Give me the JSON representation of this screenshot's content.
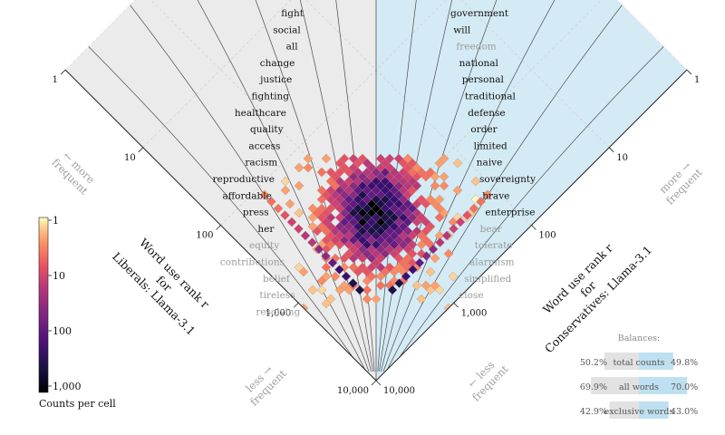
{
  "chart_data": {
    "type": "heatmap",
    "subtype": "allotaxonograph (rank-rank histogram)",
    "axes": {
      "left": {
        "label_lines": [
          "Word use rank r",
          "for",
          "Liberals: Llama-3.1"
        ],
        "ticks": [
          "1",
          "10",
          "100",
          "1,000",
          "10,000"
        ],
        "background": "#ebebeb"
      },
      "right": {
        "label_lines": [
          "Word use rank r",
          "for",
          "Conservatives: Llama-3.1"
        ],
        "ticks": [
          "1",
          "10",
          "100",
          "1,000",
          "10,000"
        ],
        "background": "#d4ebf5"
      },
      "scale": "log10",
      "range": [
        1,
        10000
      ],
      "grid": true
    },
    "direction_labels": {
      "left_more": [
        "← more",
        "frequent"
      ],
      "right_more": [
        "more →",
        "frequent"
      ],
      "left_less": [
        "less →",
        "frequent"
      ],
      "right_less": [
        "← less",
        "frequent"
      ]
    },
    "left_words": [
      {
        "text": "fight",
        "dark": true
      },
      {
        "text": "social",
        "dark": true
      },
      {
        "text": "all",
        "dark": true
      },
      {
        "text": "change",
        "dark": true
      },
      {
        "text": "justice",
        "dark": true
      },
      {
        "text": "fighting",
        "dark": true
      },
      {
        "text": "healthcare",
        "dark": true
      },
      {
        "text": "quality",
        "dark": true
      },
      {
        "text": "access",
        "dark": true
      },
      {
        "text": "racism",
        "dark": true
      },
      {
        "text": "reproductive",
        "dark": true
      },
      {
        "text": "affordable",
        "dark": true
      },
      {
        "text": "press",
        "dark": true
      },
      {
        "text": "her",
        "dark": true
      },
      {
        "text": "equity",
        "dark": false
      },
      {
        "text": "contributions",
        "dark": false
      },
      {
        "text": "belief",
        "dark": false
      },
      {
        "text": "tireless",
        "dark": false
      },
      {
        "text": "resolving",
        "dark": false
      }
    ],
    "right_words": [
      {
        "text": "government",
        "dark": true
      },
      {
        "text": "will",
        "dark": true
      },
      {
        "text": "freedom",
        "dark": false
      },
      {
        "text": "national",
        "dark": true
      },
      {
        "text": "personal",
        "dark": true
      },
      {
        "text": "traditional",
        "dark": true
      },
      {
        "text": "defense",
        "dark": true
      },
      {
        "text": "order",
        "dark": true
      },
      {
        "text": "limited",
        "dark": true
      },
      {
        "text": "naive",
        "dark": true
      },
      {
        "text": "sovereignty",
        "dark": true
      },
      {
        "text": "brave",
        "dark": true
      },
      {
        "text": "enterprise",
        "dark": true
      },
      {
        "text": "bear",
        "dark": false
      },
      {
        "text": "tolerate",
        "dark": false
      },
      {
        "text": "alarmism",
        "dark": false
      },
      {
        "text": "simplified",
        "dark": false
      },
      {
        "text": "close",
        "dark": false
      }
    ],
    "colorbar": {
      "label": "Counts per cell",
      "ticks": [
        "1",
        "10",
        "100",
        "1,000"
      ],
      "scale": "log10",
      "colormap": "magma_r"
    },
    "balances": {
      "title": "Balances:",
      "rows": [
        {
          "label": "total counts",
          "left": "50.2%",
          "right": "49.8%",
          "left_frac": 0.502,
          "right_frac": 0.498
        },
        {
          "label": "all words",
          "left": "69.9%",
          "right": "70.0%",
          "left_frac": 0.699,
          "right_frac": 0.7
        },
        {
          "label": "exclusive words",
          "left": "42.9%",
          "right": "43.0%",
          "left_frac": 0.429,
          "right_frac": 0.43
        }
      ]
    }
  }
}
